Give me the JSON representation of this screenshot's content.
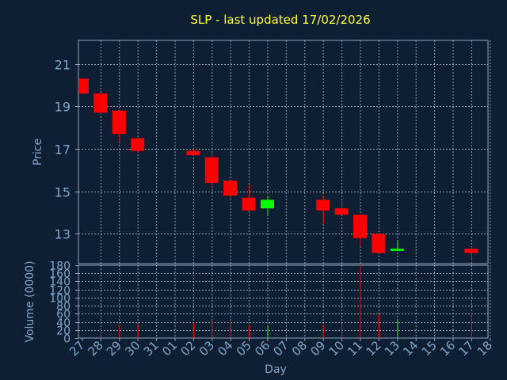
{
  "colors": {
    "background": "#0f1f33",
    "title": "#ffff33",
    "axis_text": "#7ea6c9",
    "frame": "#8fa3b8",
    "grid": "#c0c8d0",
    "down": "#ff0000",
    "up": "#00ff00"
  },
  "chart_data": {
    "type": "candlestick",
    "title": "SLP - last updated 17/02/2026",
    "xlabel": "Day",
    "price_axis": {
      "label": "Price",
      "ylim": [
        11.6,
        22.1
      ],
      "ticks": [
        13,
        15,
        17,
        19,
        21
      ]
    },
    "volume_axis": {
      "label": "Volume (0000)",
      "ylim": [
        0,
        180
      ],
      "ticks": [
        0,
        20,
        40,
        60,
        80,
        100,
        120,
        140,
        160,
        180
      ]
    },
    "x_ticks": [
      "27",
      "28",
      "29",
      "30",
      "31",
      "01",
      "02",
      "03",
      "04",
      "05",
      "06",
      "07",
      "08",
      "09",
      "10",
      "11",
      "12",
      "13",
      "14",
      "15",
      "16",
      "17",
      "18"
    ],
    "grid": true,
    "candles": [
      {
        "day": "27",
        "open": 20.3,
        "high": 20.3,
        "low": 19.6,
        "close": 19.6,
        "volume": 0
      },
      {
        "day": "28",
        "open": 19.6,
        "high": 19.6,
        "low": 18.6,
        "close": 18.7,
        "volume": 22
      },
      {
        "day": "29",
        "open": 18.8,
        "high": 18.8,
        "low": 17.3,
        "close": 17.7,
        "volume": 33
      },
      {
        "day": "30",
        "open": 17.5,
        "high": 17.5,
        "low": 16.8,
        "close": 16.9,
        "volume": 35
      },
      {
        "day": "02",
        "open": 16.9,
        "high": 17.0,
        "low": 16.7,
        "close": 16.7,
        "volume": 38
      },
      {
        "day": "03",
        "open": 16.6,
        "high": 16.8,
        "low": 15.2,
        "close": 15.4,
        "volume": 45
      },
      {
        "day": "04",
        "open": 15.5,
        "high": 15.5,
        "low": 14.6,
        "close": 14.8,
        "volume": 42
      },
      {
        "day": "05",
        "open": 14.7,
        "high": 15.3,
        "low": 14.1,
        "close": 14.1,
        "volume": 33
      },
      {
        "day": "06",
        "open": 14.2,
        "high": 14.8,
        "low": 13.9,
        "close": 14.6,
        "volume": 30
      },
      {
        "day": "09",
        "open": 14.6,
        "high": 14.8,
        "low": 13.5,
        "close": 14.1,
        "volume": 32
      },
      {
        "day": "10",
        "open": 14.2,
        "high": 14.6,
        "low": 13.9,
        "close": 13.9,
        "volume": 35
      },
      {
        "day": "11",
        "open": 13.9,
        "high": 13.9,
        "low": 12.4,
        "close": 12.8,
        "volume": 180
      },
      {
        "day": "12",
        "open": 13.0,
        "high": 13.0,
        "low": 12.1,
        "close": 12.1,
        "volume": 58
      },
      {
        "day": "13",
        "open": 12.2,
        "high": 12.7,
        "low": 12.2,
        "close": 12.3,
        "volume": 46
      },
      {
        "day": "17",
        "open": 12.3,
        "high": 12.4,
        "low": 11.8,
        "close": 12.1,
        "volume": 62
      }
    ]
  }
}
